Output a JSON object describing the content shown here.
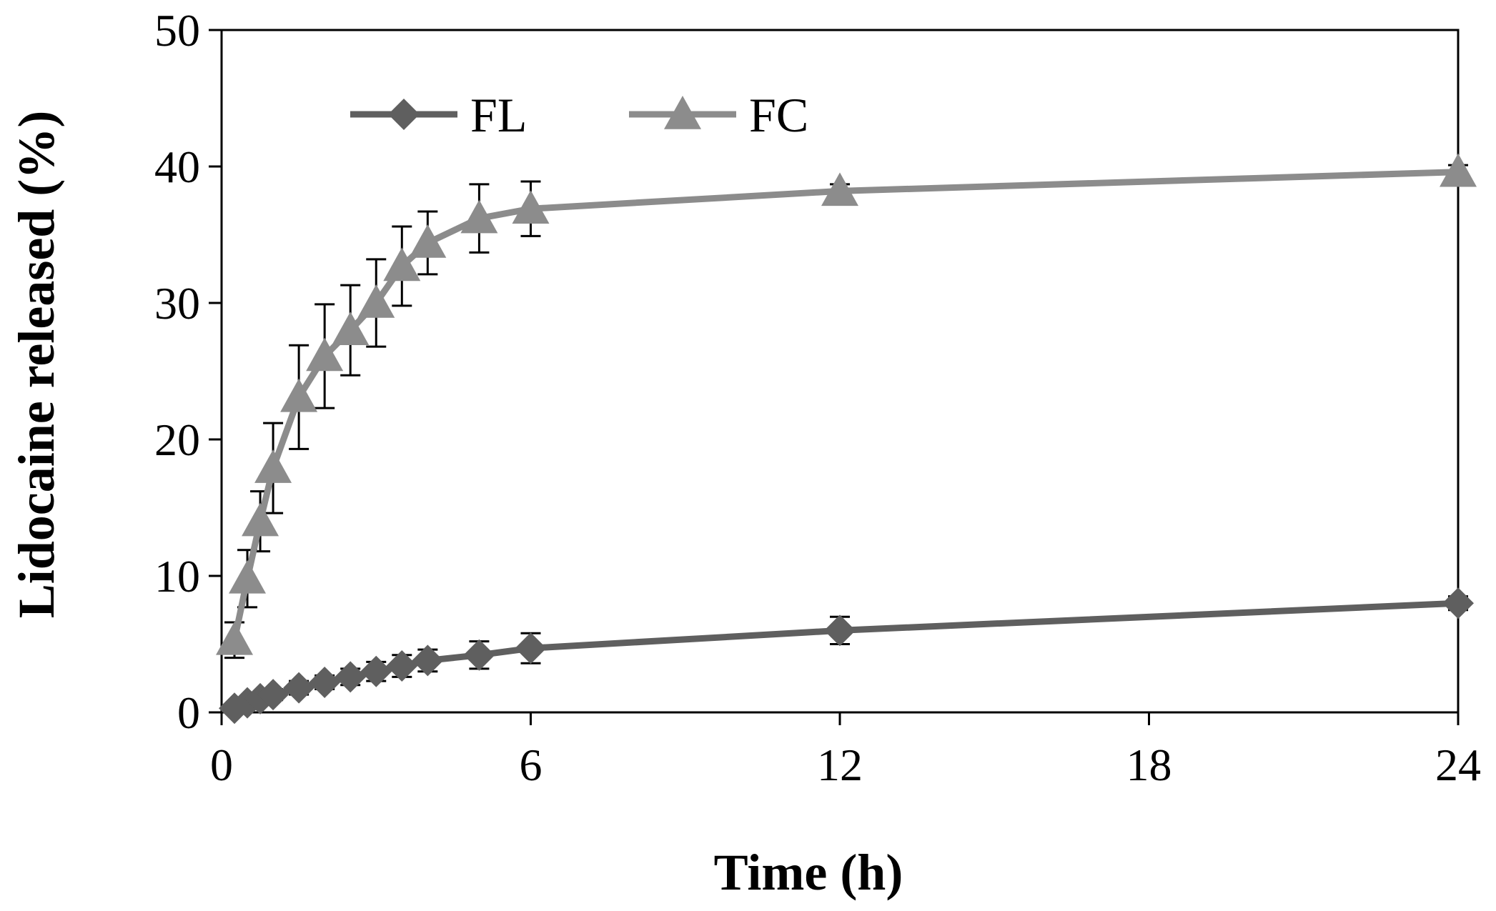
{
  "chart_data": {
    "type": "line",
    "title": "",
    "xlabel": "Time (h)",
    "ylabel": "Lidocaine released (%)",
    "xlim": [
      0,
      24
    ],
    "ylim": [
      0,
      50
    ],
    "xticks": [
      0,
      6,
      12,
      18,
      24
    ],
    "yticks": [
      0,
      10,
      20,
      30,
      40,
      50
    ],
    "xtick_labels": [
      "0",
      "6",
      "12",
      "18",
      "24"
    ],
    "ytick_labels": [
      "0",
      "10",
      "20",
      "30",
      "40",
      "50"
    ],
    "grid": false,
    "legend_position": "top-left",
    "series": [
      {
        "name": "FL",
        "marker": "diamond",
        "color": "#5f5f5f",
        "x": [
          0.25,
          0.5,
          0.75,
          1,
          1.5,
          2,
          2.5,
          3,
          3.5,
          4,
          5,
          6,
          12,
          24
        ],
        "y": [
          0.3,
          0.7,
          1.0,
          1.3,
          1.8,
          2.2,
          2.6,
          3.0,
          3.4,
          3.8,
          4.2,
          4.7,
          6.0,
          8.0
        ],
        "error": [
          0.2,
          0.3,
          0.3,
          0.4,
          0.5,
          0.5,
          0.6,
          0.7,
          0.8,
          0.8,
          1.0,
          1.1,
          1.0,
          0.5
        ]
      },
      {
        "name": "FC",
        "marker": "triangle",
        "color": "#8c8c8c",
        "x": [
          0.25,
          0.5,
          0.75,
          1,
          1.5,
          2,
          2.5,
          3,
          3.5,
          4,
          5,
          6,
          12,
          24
        ],
        "y": [
          5.3,
          9.8,
          14.0,
          17.9,
          23.1,
          26.1,
          28.0,
          30.0,
          32.7,
          34.4,
          36.2,
          36.9,
          38.2,
          39.6
        ],
        "error": [
          1.3,
          2.1,
          2.2,
          3.3,
          3.8,
          3.8,
          3.3,
          3.2,
          2.9,
          2.3,
          2.5,
          2.0,
          0.5,
          0.5
        ]
      }
    ]
  }
}
